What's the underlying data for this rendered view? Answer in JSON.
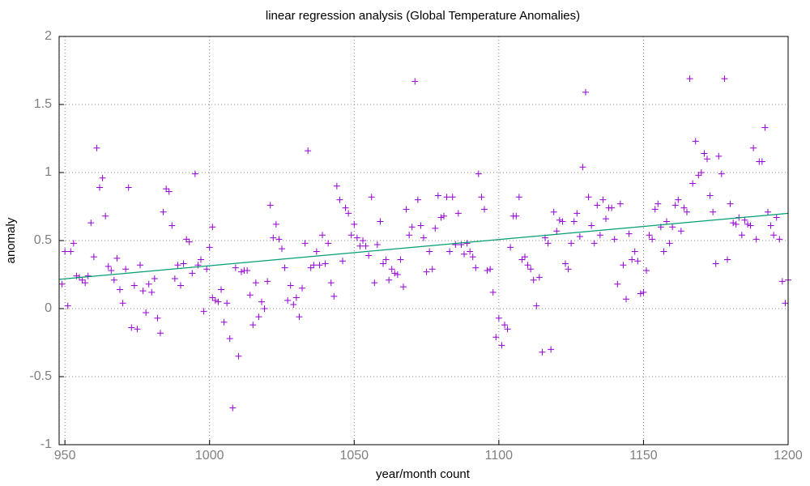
{
  "chart_data": {
    "type": "scatter",
    "title": "linear regression analysis (Global Temperature Anomalies)",
    "x_label": "year/month count",
    "y_label": "anomaly",
    "xlim": [
      948,
      1200
    ],
    "ylim": [
      -1,
      2
    ],
    "xticks": [
      950,
      1000,
      1050,
      1100,
      1150,
      1200
    ],
    "yticks": [
      -1,
      -0.5,
      0,
      0.5,
      1,
      1.5,
      2
    ],
    "grid": true,
    "series": [
      {
        "type": "scatter",
        "marker": "+",
        "color": "#9400d3",
        "x": [
          949,
          950,
          951,
          952,
          953,
          954,
          955,
          956,
          957,
          958,
          959,
          960,
          961,
          962,
          963,
          964,
          965,
          966,
          967,
          968,
          969,
          970,
          971,
          972,
          973,
          974,
          975,
          976,
          977,
          978,
          979,
          980,
          981,
          982,
          983,
          984,
          985,
          986,
          987,
          988,
          989,
          990,
          991,
          992,
          993,
          994,
          995,
          996,
          997,
          998,
          999,
          1000,
          1001,
          1001,
          1002,
          1003,
          1004,
          1005,
          1006,
          1007,
          1008,
          1009,
          1010,
          1011,
          1012,
          1013,
          1014,
          1015,
          1016,
          1017,
          1018,
          1019,
          1020,
          1021,
          1022,
          1023,
          1024,
          1025,
          1026,
          1027,
          1028,
          1029,
          1030,
          1031,
          1032,
          1033,
          1034,
          1035,
          1036,
          1037,
          1038,
          1039,
          1040,
          1041,
          1042,
          1043,
          1044,
          1045,
          1046,
          1047,
          1048,
          1049,
          1050,
          1051,
          1052,
          1053,
          1054,
          1055,
          1056,
          1057,
          1058,
          1059,
          1060,
          1061,
          1062,
          1063,
          1064,
          1065,
          1066,
          1067,
          1068,
          1069,
          1070,
          1071,
          1072,
          1073,
          1074,
          1075,
          1076,
          1077,
          1078,
          1079,
          1080,
          1081,
          1082,
          1083,
          1084,
          1085,
          1086,
          1087,
          1088,
          1089,
          1090,
          1091,
          1092,
          1093,
          1094,
          1095,
          1096,
          1097,
          1098,
          1099,
          1100,
          1101,
          1102,
          1103,
          1104,
          1105,
          1106,
          1107,
          1108,
          1109,
          1110,
          1111,
          1112,
          1113,
          1114,
          1115,
          1116,
          1117,
          1118,
          1119,
          1120,
          1121,
          1122,
          1123,
          1124,
          1125,
          1126,
          1127,
          1128,
          1129,
          1130,
          1131,
          1132,
          1133,
          1134,
          1135,
          1136,
          1137,
          1138,
          1139,
          1140,
          1141,
          1142,
          1143,
          1144,
          1145,
          1146,
          1147,
          1148,
          1149,
          1150,
          1151,
          1152,
          1153,
          1154,
          1155,
          1156,
          1157,
          1158,
          1159,
          1160,
          1161,
          1162,
          1163,
          1164,
          1165,
          1166,
          1167,
          1168,
          1169,
          1170,
          1171,
          1172,
          1173,
          1174,
          1175,
          1176,
          1177,
          1178,
          1179,
          1180,
          1181,
          1182,
          1183,
          1184,
          1185,
          1186,
          1187,
          1188,
          1189,
          1190,
          1191,
          1192,
          1193,
          1194,
          1195,
          1196,
          1197,
          1198,
          1199,
          1200
        ],
        "values": [
          0.18,
          0.42,
          0.02,
          0.42,
          0.48,
          0.24,
          0.23,
          0.21,
          0.19,
          0.24,
          0.63,
          0.38,
          1.18,
          0.89,
          0.96,
          0.68,
          0.31,
          0.28,
          0.21,
          0.37,
          0.14,
          0.04,
          0.29,
          0.89,
          -0.14,
          0.17,
          -0.15,
          0.32,
          0.13,
          -0.03,
          0.18,
          0.12,
          0.22,
          -0.07,
          -0.18,
          0.71,
          0.88,
          0.86,
          0.61,
          0.22,
          0.32,
          0.17,
          0.33,
          0.51,
          0.49,
          0.26,
          0.99,
          0.32,
          0.36,
          -0.02,
          0.29,
          0.45,
          0.08,
          0.6,
          0.06,
          0.05,
          0.14,
          -0.1,
          0.04,
          -0.22,
          -0.73,
          0.3,
          -0.35,
          0.27,
          0.28,
          0.28,
          0.1,
          -0.12,
          0.19,
          -0.06,
          0.05,
          0.0,
          0.2,
          0.76,
          0.52,
          0.62,
          0.51,
          0.44,
          0.3,
          0.06,
          0.17,
          0.03,
          0.08,
          -0.06,
          0.15,
          0.48,
          1.16,
          0.3,
          0.32,
          0.42,
          0.32,
          0.54,
          0.33,
          0.48,
          0.19,
          0.09,
          0.9,
          0.8,
          0.35,
          0.74,
          0.7,
          0.54,
          0.62,
          0.52,
          0.46,
          0.5,
          0.46,
          0.39,
          0.82,
          0.19,
          0.47,
          0.64,
          0.33,
          0.36,
          0.21,
          0.29,
          0.26,
          0.25,
          0.36,
          0.16,
          0.73,
          0.54,
          0.6,
          1.67,
          0.8,
          0.61,
          0.52,
          0.27,
          0.42,
          0.29,
          0.59,
          0.83,
          0.67,
          0.68,
          0.82,
          0.42,
          0.82,
          0.47,
          0.7,
          0.47,
          0.4,
          0.48,
          0.42,
          0.38,
          0.3,
          0.99,
          0.82,
          0.73,
          0.28,
          0.29,
          0.12,
          -0.21,
          -0.07,
          -0.27,
          -0.12,
          -0.15,
          0.45,
          0.68,
          0.68,
          0.82,
          0.36,
          0.38,
          0.32,
          0.29,
          0.21,
          0.02,
          0.23,
          -0.32,
          0.52,
          0.48,
          -0.3,
          0.71,
          0.57,
          0.65,
          0.64,
          0.33,
          0.29,
          0.48,
          0.64,
          0.7,
          0.53,
          1.04,
          1.59,
          0.82,
          0.61,
          0.48,
          0.76,
          0.54,
          0.8,
          0.66,
          0.74,
          0.74,
          0.51,
          0.18,
          0.77,
          0.32,
          0.07,
          0.55,
          0.36,
          0.42,
          0.35,
          0.11,
          0.12,
          0.28,
          0.54,
          0.51,
          0.73,
          0.77,
          0.6,
          0.42,
          0.64,
          0.48,
          0.6,
          0.76,
          0.8,
          0.57,
          0.74,
          0.71,
          1.69,
          0.92,
          1.23,
          0.98,
          1.0,
          1.14,
          1.1,
          0.83,
          0.71,
          0.33,
          1.12,
          0.99,
          1.69,
          0.36,
          0.77,
          0.63,
          0.62,
          0.67,
          0.54,
          0.65,
          0.62,
          0.61,
          1.18,
          0.51,
          1.08,
          1.08,
          1.33,
          0.71,
          0.61,
          0.54,
          0.67,
          0.51,
          0.2,
          0.04,
          0.21
        ]
      },
      {
        "type": "line",
        "color": "#009e73",
        "x": [
          948,
          1200
        ],
        "values": [
          0.215,
          0.7
        ]
      }
    ]
  }
}
